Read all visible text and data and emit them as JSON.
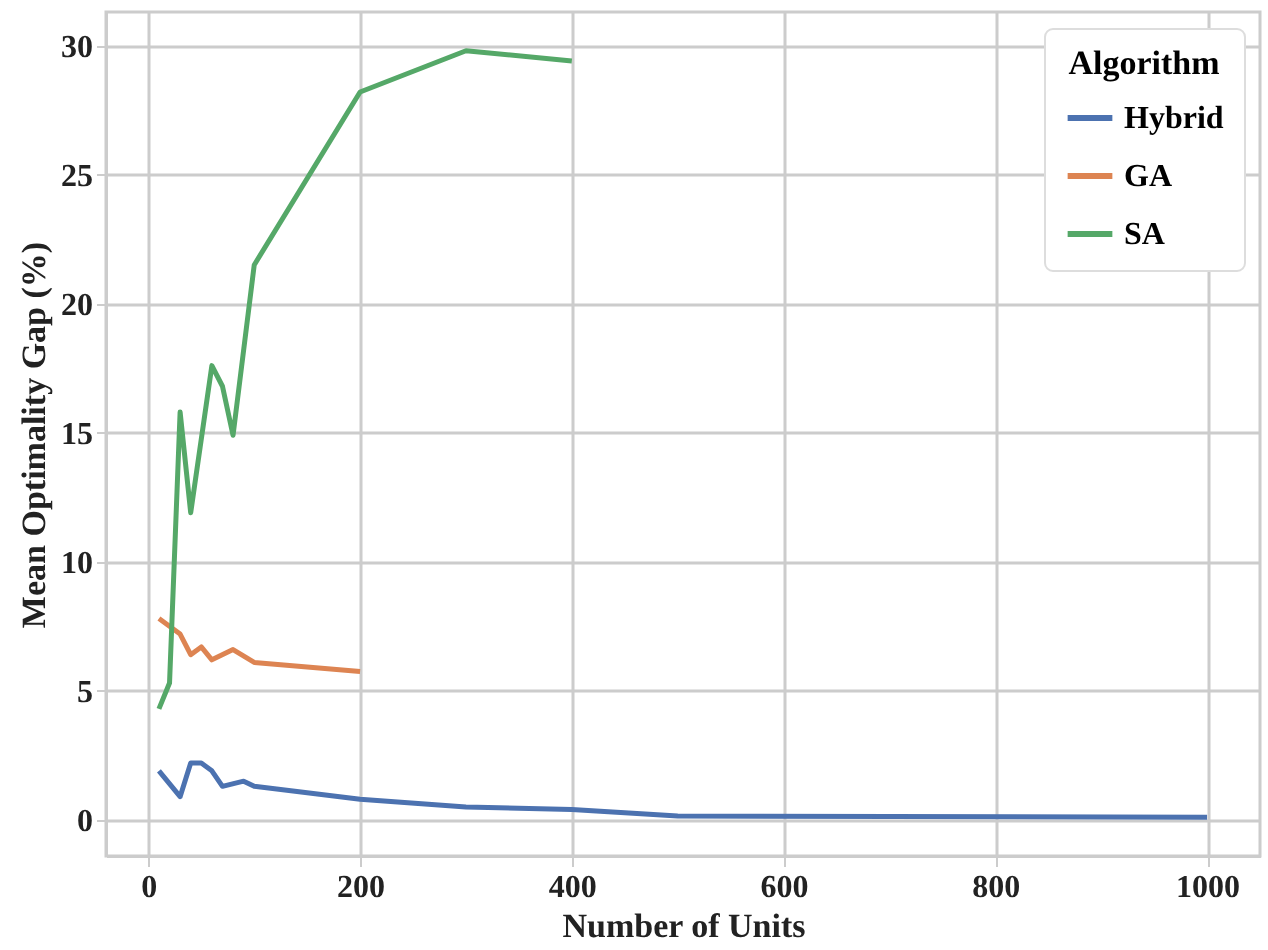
{
  "chart_data": {
    "type": "line",
    "xlabel": "Number of Units",
    "ylabel": "Mean Optimality Gap (%)",
    "legend_title": "Algorithm",
    "xlim": [
      -40,
      1050
    ],
    "xticks": [
      0,
      200,
      400,
      600,
      800,
      1000
    ],
    "ylim": [
      -1.4,
      31.3
    ],
    "yticks": [
      0,
      5,
      10,
      15,
      20,
      25,
      30
    ],
    "grid": true,
    "legend": "top right",
    "line_style": "solid",
    "marker": "none",
    "series": [
      {
        "name": "Hybrid",
        "color": "#4c72b0",
        "x": [
          10,
          30,
          40,
          50,
          60,
          70,
          90,
          100,
          200,
          300,
          400,
          500,
          1000
        ],
        "values": [
          1.9,
          0.9,
          2.2,
          2.2,
          1.9,
          1.3,
          1.5,
          1.3,
          0.8,
          0.5,
          0.4,
          0.15,
          0.1
        ]
      },
      {
        "name": "GA",
        "color": "#dd8452",
        "x": [
          10,
          30,
          40,
          50,
          60,
          80,
          100,
          200
        ],
        "values": [
          7.8,
          7.2,
          6.4,
          6.7,
          6.2,
          6.6,
          6.1,
          5.75
        ]
      },
      {
        "name": "SA",
        "color": "#55a868",
        "x": [
          10,
          20,
          30,
          40,
          60,
          70,
          80,
          100,
          200,
          300,
          400
        ],
        "values": [
          4.3,
          5.3,
          15.8,
          11.9,
          17.6,
          16.8,
          14.9,
          21.5,
          28.2,
          29.8,
          29.4
        ]
      }
    ]
  }
}
